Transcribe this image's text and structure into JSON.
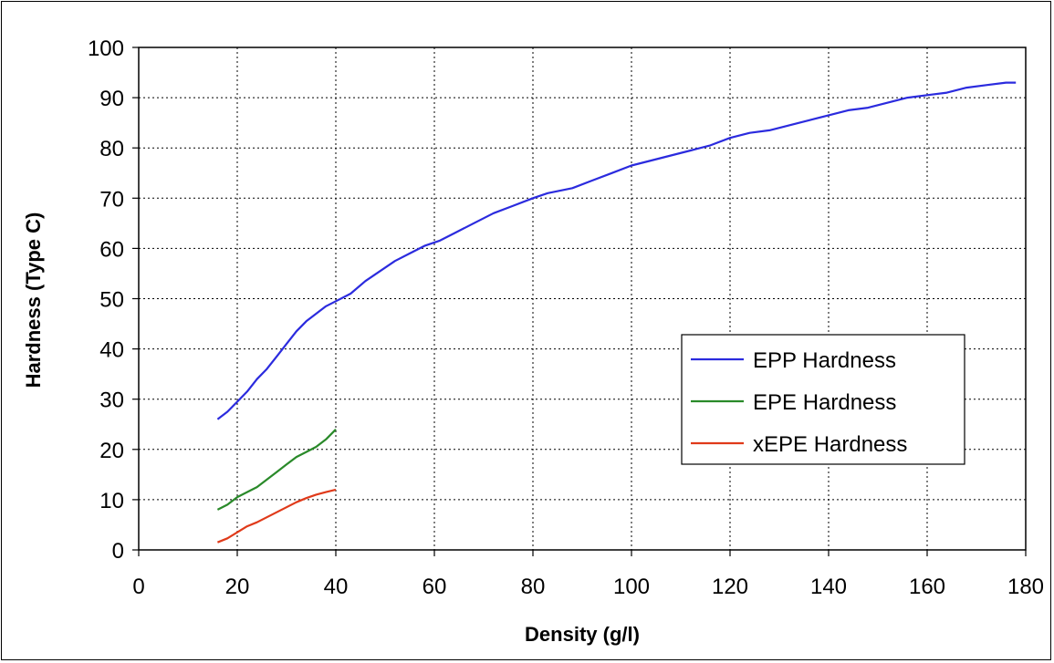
{
  "chart_data": {
    "type": "line",
    "title": "",
    "xlabel": "Density (g/l)",
    "ylabel": "Hardness (Type C)",
    "xlim": [
      0,
      180
    ],
    "ylim": [
      0,
      100
    ],
    "xticks": [
      0,
      20,
      40,
      60,
      80,
      100,
      120,
      140,
      160,
      180
    ],
    "yticks": [
      0,
      10,
      20,
      30,
      40,
      50,
      60,
      70,
      80,
      90,
      100
    ],
    "grid": true,
    "legend_position": "right",
    "series": [
      {
        "name": "EPP Hardness",
        "color": "#2b2bde",
        "x": [
          16,
          18,
          20,
          22,
          24,
          26,
          28,
          30,
          32,
          34,
          36,
          38,
          40,
          43,
          46,
          49,
          52,
          55,
          58,
          61,
          64,
          68,
          72,
          76,
          80,
          83,
          88,
          92,
          96,
          100,
          104,
          108,
          112,
          116,
          120,
          124,
          128,
          132,
          136,
          140,
          144,
          148,
          152,
          156,
          160,
          164,
          168,
          172,
          176,
          178
        ],
        "y": [
          26,
          27.5,
          29.5,
          31.5,
          34,
          36,
          38.5,
          41,
          43.5,
          45.5,
          47,
          48.5,
          49.5,
          51,
          53.5,
          55.5,
          57.5,
          59,
          60.5,
          61.5,
          63,
          65,
          67,
          68.5,
          70,
          71,
          72,
          73.5,
          75,
          76.5,
          77.5,
          78.5,
          79.5,
          80.5,
          82,
          83,
          83.5,
          84.5,
          85.5,
          86.5,
          87.5,
          88,
          89,
          90,
          90.5,
          91,
          92,
          92.5,
          93,
          93
        ]
      },
      {
        "name": "EPE Hardness",
        "color": "#2a8a2a",
        "x": [
          16,
          18,
          20,
          22,
          24,
          26,
          28,
          30,
          32,
          34,
          36,
          38,
          40
        ],
        "y": [
          8,
          9,
          10.5,
          11.5,
          12.5,
          14,
          15.5,
          17,
          18.5,
          19.5,
          20.5,
          22,
          24
        ]
      },
      {
        "name": "xEPE Hardness",
        "color": "#e03a1a",
        "x": [
          16,
          18,
          20,
          22,
          24,
          26,
          28,
          30,
          32,
          34,
          36,
          38,
          40
        ],
        "y": [
          1.5,
          2.3,
          3.5,
          4.7,
          5.5,
          6.5,
          7.5,
          8.5,
          9.5,
          10.3,
          11,
          11.5,
          12
        ]
      }
    ]
  }
}
